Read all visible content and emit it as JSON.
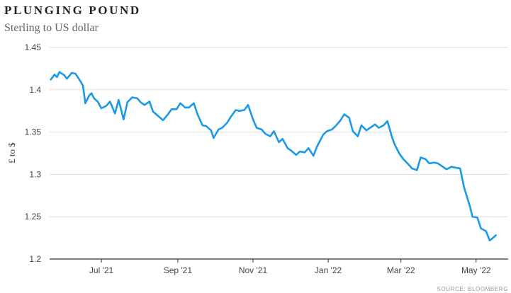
{
  "header": {
    "title": "PLUNGING POUND",
    "subtitle": "Sterling to US dollar"
  },
  "source": "SOURCE: BLOOMBERG",
  "colors": {
    "line": "#1a9ae6",
    "grid": "#dddddd",
    "axis": "#333333"
  },
  "chart_data": {
    "type": "line",
    "ylabel": "£ to $",
    "ylim": [
      1.2,
      1.45
    ],
    "yticks": [
      1.2,
      1.25,
      1.3,
      1.35,
      1.4,
      1.45
    ],
    "ytick_labels": [
      "1.2",
      "1.25",
      "1.3",
      "1.35",
      "1.4",
      "1.45"
    ],
    "xlim": [
      "2021-05-20",
      "2022-05-27"
    ],
    "xticks": [
      "2021-07-01",
      "2021-09-01",
      "2021-11-01",
      "2022-01-01",
      "2022-03-01",
      "2022-05-01"
    ],
    "xtick_labels": [
      "Jul '21",
      "Sep '21",
      "Nov '21",
      "Jan '22",
      "Mar '22",
      "May '22"
    ],
    "grid": true,
    "series": [
      {
        "x": [
          "2021-05-21",
          "2021-05-24",
          "2021-05-26",
          "2021-05-28",
          "2021-06-01",
          "2021-06-03",
          "2021-06-07",
          "2021-06-10",
          "2021-06-14",
          "2021-06-16",
          "2021-06-18",
          "2021-06-21",
          "2021-06-23",
          "2021-06-25",
          "2021-06-28",
          "2021-07-01",
          "2021-07-05",
          "2021-07-08",
          "2021-07-12",
          "2021-07-15",
          "2021-07-19",
          "2021-07-22",
          "2021-07-26",
          "2021-07-30",
          "2021-08-02",
          "2021-08-05",
          "2021-08-09",
          "2021-08-12",
          "2021-08-16",
          "2021-08-20",
          "2021-08-24",
          "2021-08-27",
          "2021-08-31",
          "2021-09-03",
          "2021-09-07",
          "2021-09-10",
          "2021-09-14",
          "2021-09-17",
          "2021-09-21",
          "2021-09-24",
          "2021-09-28",
          "2021-09-30",
          "2021-10-04",
          "2021-10-07",
          "2021-10-11",
          "2021-10-14",
          "2021-10-18",
          "2021-10-21",
          "2021-10-25",
          "2021-10-28",
          "2021-11-01",
          "2021-11-04",
          "2021-11-08",
          "2021-11-11",
          "2021-11-15",
          "2021-11-18",
          "2021-11-22",
          "2021-11-25",
          "2021-11-29",
          "2021-12-02",
          "2021-12-06",
          "2021-12-09",
          "2021-12-13",
          "2021-12-16",
          "2021-12-20",
          "2021-12-23",
          "2021-12-28",
          "2021-12-31",
          "2022-01-04",
          "2022-01-07",
          "2022-01-11",
          "2022-01-14",
          "2022-01-18",
          "2022-01-21",
          "2022-01-25",
          "2022-01-28",
          "2022-02-01",
          "2022-02-04",
          "2022-02-08",
          "2022-02-11",
          "2022-02-15",
          "2022-02-18",
          "2022-02-22",
          "2022-02-24",
          "2022-02-28",
          "2022-03-03",
          "2022-03-07",
          "2022-03-10",
          "2022-03-14",
          "2022-03-17",
          "2022-03-21",
          "2022-03-24",
          "2022-03-28",
          "2022-03-31",
          "2022-04-04",
          "2022-04-07",
          "2022-04-11",
          "2022-04-14",
          "2022-04-18",
          "2022-04-21",
          "2022-04-22",
          "2022-04-26",
          "2022-04-28",
          "2022-05-02",
          "2022-05-05",
          "2022-05-09",
          "2022-05-12",
          "2022-05-13",
          "2022-05-17"
        ],
        "values": [
          1.412,
          1.418,
          1.415,
          1.421,
          1.417,
          1.413,
          1.42,
          1.419,
          1.41,
          1.405,
          1.384,
          1.393,
          1.396,
          1.39,
          1.386,
          1.378,
          1.381,
          1.386,
          1.372,
          1.388,
          1.365,
          1.385,
          1.391,
          1.39,
          1.385,
          1.382,
          1.386,
          1.374,
          1.369,
          1.364,
          1.371,
          1.377,
          1.377,
          1.384,
          1.379,
          1.379,
          1.384,
          1.371,
          1.358,
          1.357,
          1.352,
          1.343,
          1.353,
          1.355,
          1.361,
          1.368,
          1.376,
          1.375,
          1.376,
          1.382,
          1.365,
          1.355,
          1.353,
          1.348,
          1.345,
          1.351,
          1.338,
          1.342,
          1.331,
          1.328,
          1.323,
          1.327,
          1.326,
          1.331,
          1.322,
          1.333,
          1.347,
          1.351,
          1.353,
          1.357,
          1.364,
          1.371,
          1.367,
          1.351,
          1.345,
          1.358,
          1.352,
          1.355,
          1.359,
          1.355,
          1.358,
          1.363,
          1.343,
          1.335,
          1.324,
          1.318,
          1.312,
          1.307,
          1.305,
          1.32,
          1.318,
          1.313,
          1.314,
          1.313,
          1.309,
          1.306,
          1.309,
          1.308,
          1.307,
          1.286,
          1.281,
          1.262,
          1.25,
          1.249,
          1.236,
          1.233,
          1.222,
          1.223,
          1.228
        ]
      }
    ]
  }
}
